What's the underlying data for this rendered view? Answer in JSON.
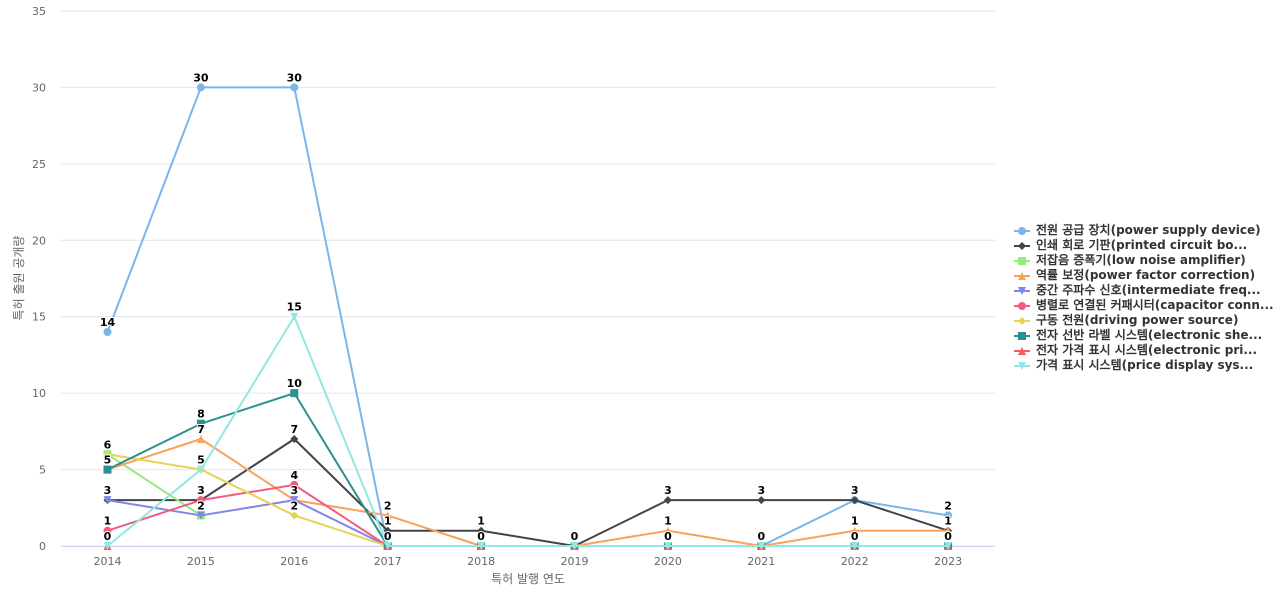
{
  "chart_data": {
    "type": "line",
    "title": "",
    "xlabel": "특허 발행 연도",
    "ylabel": "특허 출원 공개량",
    "categories": [
      "2014",
      "2015",
      "2016",
      "2017",
      "2018",
      "2019",
      "2020",
      "2021",
      "2022",
      "2023"
    ],
    "ylim": [
      0,
      35
    ],
    "yticks": [
      0,
      5,
      10,
      15,
      20,
      25,
      30,
      35
    ],
    "grid": true,
    "legend_position": "right",
    "series": [
      {
        "name": "전원 공급 장치(power supply device)",
        "color": "#7cb5ec",
        "marker": "circle",
        "values": [
          14,
          30,
          30,
          0,
          0,
          0,
          0,
          0,
          3,
          2
        ]
      },
      {
        "name": "인쇄 회로 기판(printed circuit bo...",
        "color": "#434348",
        "marker": "diamond",
        "values": [
          3,
          3,
          7,
          1,
          1,
          0,
          3,
          3,
          3,
          1
        ]
      },
      {
        "name": "저잡음 증폭기(low noise amplifier)",
        "color": "#90ed7d",
        "marker": "square",
        "values": [
          6,
          2,
          null,
          null,
          null,
          null,
          null,
          null,
          null,
          null
        ]
      },
      {
        "name": "역률 보정(power factor correction)",
        "color": "#f7a35c",
        "marker": "triangle",
        "values": [
          5,
          7,
          3,
          2,
          0,
          0,
          1,
          0,
          1,
          1
        ]
      },
      {
        "name": "중간 주파수 신호(intermediate freq...",
        "color": "#8085e9",
        "marker": "triangle-down",
        "values": [
          3,
          2,
          3,
          0,
          null,
          null,
          null,
          null,
          null,
          null
        ]
      },
      {
        "name": "병렬로 연결된 커패시터(capacitor conn...",
        "color": "#f15c80",
        "marker": "circle",
        "values": [
          1,
          3,
          4,
          0,
          0,
          0,
          0,
          0,
          0,
          0
        ]
      },
      {
        "name": "구동 전원(driving power source)",
        "color": "#e4d354",
        "marker": "diamond",
        "values": [
          6,
          5,
          2,
          0,
          0,
          0,
          0,
          0,
          0,
          0
        ]
      },
      {
        "name": "전자 선반 라벨 시스템(electronic she...",
        "color": "#2b908f",
        "marker": "square",
        "values": [
          5,
          8,
          10,
          0,
          0,
          0,
          0,
          0,
          0,
          0
        ]
      },
      {
        "name": "전자 가격 표시 시스템(electronic pri...",
        "color": "#f45b5b",
        "marker": "triangle",
        "values": [
          0,
          null,
          null,
          0,
          0,
          0,
          0,
          0,
          0,
          0
        ]
      },
      {
        "name": "가격 표시 시스템(price display sys...",
        "color": "#91e8e1",
        "marker": "triangle-down",
        "values": [
          0,
          5,
          15,
          0,
          0,
          0,
          0,
          0,
          0,
          0
        ]
      }
    ],
    "data_labels": [
      {
        "x": "2014",
        "y": 14,
        "text": "14"
      },
      {
        "x": "2015",
        "y": 30,
        "text": "30"
      },
      {
        "x": "2016",
        "y": 30,
        "text": "30"
      },
      {
        "x": "2016",
        "y": 15,
        "text": "15"
      },
      {
        "x": "2016",
        "y": 10,
        "text": "10"
      },
      {
        "x": "2015",
        "y": 8,
        "text": "8"
      },
      {
        "x": "2015",
        "y": 7,
        "text": "7"
      },
      {
        "x": "2016",
        "y": 7,
        "text": "7"
      },
      {
        "x": "2014",
        "y": 6,
        "text": "6"
      },
      {
        "x": "2014",
        "y": 5,
        "text": "5"
      },
      {
        "x": "2015",
        "y": 5,
        "text": "5"
      },
      {
        "x": "2016",
        "y": 4,
        "text": "4"
      },
      {
        "x": "2014",
        "y": 3,
        "text": "3"
      },
      {
        "x": "2015",
        "y": 3,
        "text": "3"
      },
      {
        "x": "2016",
        "y": 3,
        "text": "3"
      },
      {
        "x": "2015",
        "y": 2,
        "text": "2"
      },
      {
        "x": "2016",
        "y": 2,
        "text": "2"
      },
      {
        "x": "2017",
        "y": 2,
        "text": "2"
      },
      {
        "x": "2014",
        "y": 1,
        "text": "1"
      },
      {
        "x": "2017",
        "y": 1,
        "text": "1"
      },
      {
        "x": "2018",
        "y": 1,
        "text": "1"
      },
      {
        "x": "2014",
        "y": 0,
        "text": "0"
      },
      {
        "x": "2017",
        "y": 0,
        "text": "0"
      },
      {
        "x": "2018",
        "y": 0,
        "text": "0"
      },
      {
        "x": "2019",
        "y": 0,
        "text": "0"
      },
      {
        "x": "2020",
        "y": 3,
        "text": "3"
      },
      {
        "x": "2020",
        "y": 1,
        "text": "1"
      },
      {
        "x": "2020",
        "y": 0,
        "text": "0"
      },
      {
        "x": "2021",
        "y": 3,
        "text": "3"
      },
      {
        "x": "2021",
        "y": 0,
        "text": "0"
      },
      {
        "x": "2022",
        "y": 3,
        "text": "3"
      },
      {
        "x": "2022",
        "y": 1,
        "text": "1"
      },
      {
        "x": "2022",
        "y": 0,
        "text": "0"
      },
      {
        "x": "2023",
        "y": 2,
        "text": "2"
      },
      {
        "x": "2023",
        "y": 1,
        "text": "1"
      },
      {
        "x": "2023",
        "y": 0,
        "text": "0"
      }
    ]
  }
}
